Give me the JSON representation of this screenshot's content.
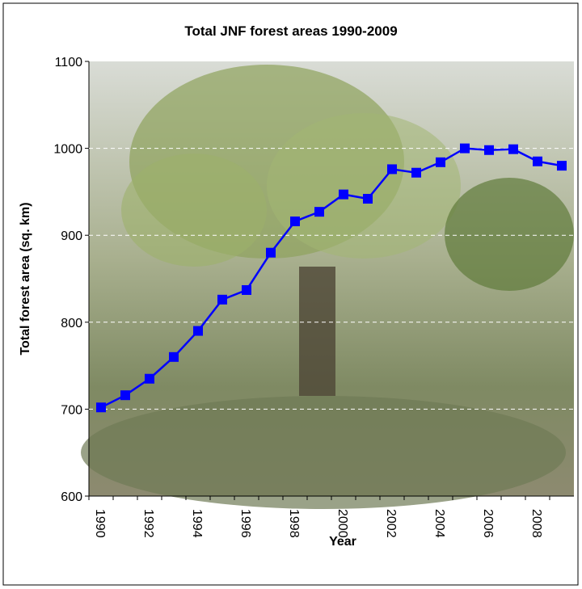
{
  "chart_data": {
    "type": "line",
    "title": "Total JNF forest areas 1990-2009",
    "x_label": "Year",
    "y_label": "Total forest area (sq. km)",
    "categories": [
      "1990",
      null,
      "1992",
      null,
      "1994",
      null,
      "1996",
      null,
      "1998",
      null,
      "2000",
      null,
      "2002",
      null,
      "2004",
      null,
      "2006",
      null,
      "2008",
      null
    ],
    "values": [
      702,
      716,
      735,
      760,
      790,
      826,
      837,
      880,
      916,
      927,
      947,
      942,
      976,
      972,
      984,
      1000,
      998,
      999,
      985,
      980
    ],
    "color": "#0000ff",
    "ylim": [
      600,
      1100
    ],
    "yticks": [
      600,
      700,
      800,
      900,
      1000,
      1100
    ],
    "grid": true
  }
}
